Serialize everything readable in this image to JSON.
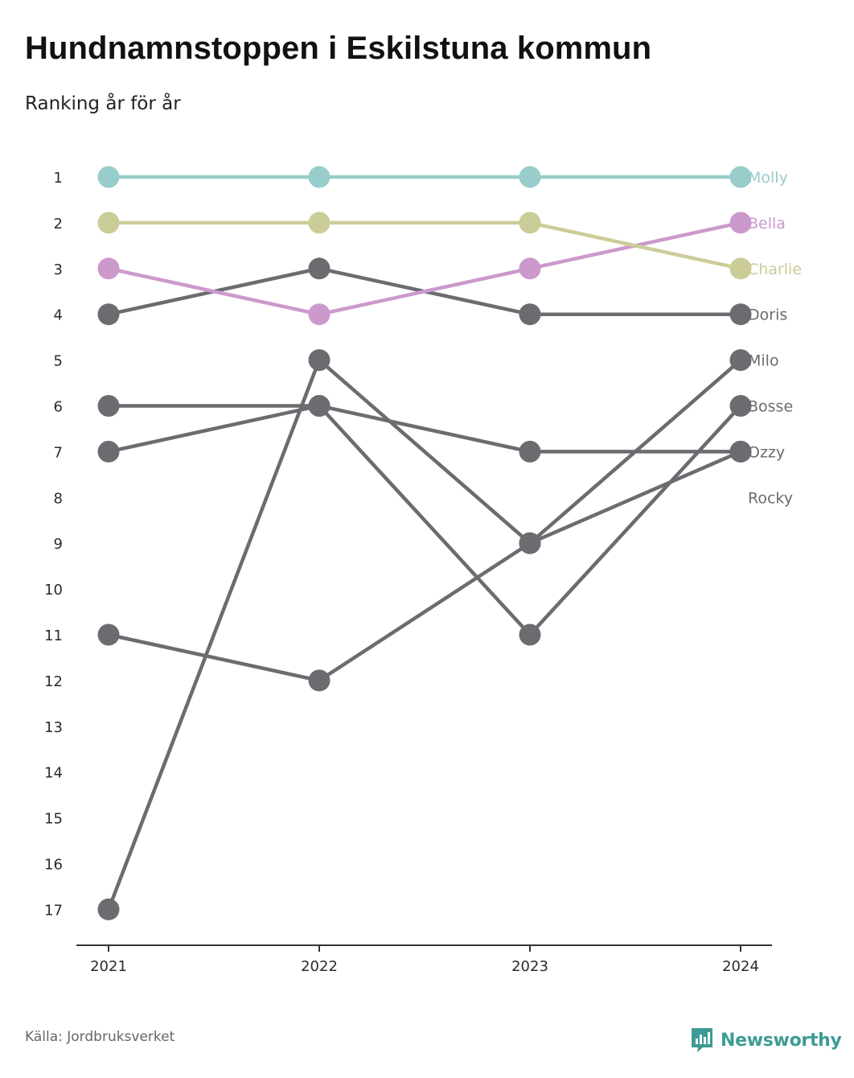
{
  "title": "Hundnamnstoppen i Eskilstuna kommun",
  "subtitle": "Ranking år för år",
  "source": "Källa: Jordbruksverket",
  "brand": {
    "name": "Newsworthy",
    "color": "#3d9b95",
    "icon": "bar-chart-speech-bubble-icon"
  },
  "colors": {
    "highlight_molly": "#98cdcb",
    "highlight_bella": "#cc99cc",
    "highlight_charlie": "#cccc99",
    "other": "#6b6b70",
    "axis": "#333333"
  },
  "chart_data": {
    "type": "line",
    "title": "Hundnamnstoppen i Eskilstuna kommun",
    "subtitle": "Ranking år för år",
    "x": [
      "2021",
      "2022",
      "2023",
      "2024"
    ],
    "y_ticks": [
      1,
      2,
      3,
      4,
      5,
      6,
      7,
      8,
      9,
      10,
      11,
      12,
      13,
      14,
      15,
      16,
      17
    ],
    "ylim": [
      1,
      17
    ],
    "y_inverted": true,
    "grid": false,
    "legend": "direct labels at line ends (right)",
    "series": [
      {
        "name": "Molly",
        "values": [
          1,
          1,
          1,
          1
        ],
        "color": "#98cdcb"
      },
      {
        "name": "Bella",
        "values": [
          3,
          4,
          3,
          2
        ],
        "color": "#cc99cc"
      },
      {
        "name": "Charlie",
        "values": [
          2,
          2,
          2,
          3
        ],
        "color": "#cccc99"
      },
      {
        "name": "Doris",
        "values": [
          4,
          3,
          4,
          4
        ],
        "color": "#6b6b70"
      },
      {
        "name": "Milo",
        "values": [
          11,
          12,
          9,
          5
        ],
        "color": "#6b6b70"
      },
      {
        "name": "Bosse",
        "values": [
          7,
          6,
          11,
          6
        ],
        "color": "#6b6b70"
      },
      {
        "name": "Ozzy",
        "values": [
          6,
          6,
          7,
          7
        ],
        "color": "#6b6b70"
      },
      {
        "name": "Rocky",
        "values": [
          17,
          5,
          9,
          7
        ],
        "color": "#6b6b70"
      }
    ],
    "end_labels": [
      "Molly",
      "Bella",
      "Charlie",
      "Doris",
      "Milo",
      "Bosse",
      "Ozzy",
      "Rocky"
    ]
  }
}
